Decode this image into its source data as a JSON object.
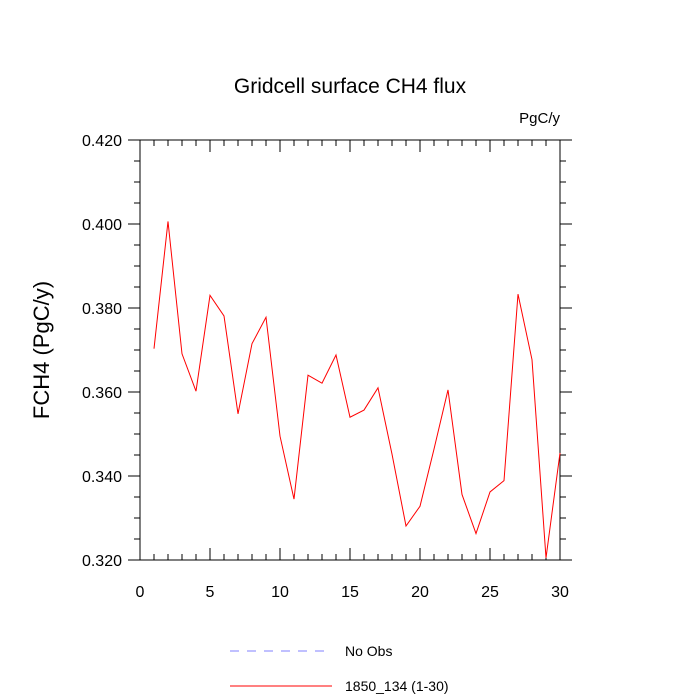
{
  "chart_data": {
    "type": "line",
    "title": "Gridcell surface CH4 flux",
    "units_label": "PgC/y",
    "xlabel": "",
    "ylabel": "FCH4  (PgC/y)",
    "xlim": [
      0,
      30
    ],
    "ylim": [
      0.32,
      0.42
    ],
    "x_ticks": [
      0,
      5,
      10,
      15,
      20,
      25,
      30
    ],
    "x_tick_labels": [
      "0",
      "5",
      "10",
      "15",
      "20",
      "25",
      "30"
    ],
    "y_ticks": [
      0.32,
      0.34,
      0.36,
      0.38,
      0.4,
      0.42
    ],
    "y_tick_labels": [
      "0.320",
      "0.340",
      "0.360",
      "0.380",
      "0.400",
      "0.420"
    ],
    "grid": false,
    "legend_position": "bottom",
    "series": [
      {
        "name": "No Obs",
        "color": "#8080ff",
        "dash": "dashed",
        "x": [],
        "values": []
      },
      {
        "name": "1850_134 (1-30)",
        "color": "#ff0000",
        "dash": "solid",
        "x": [
          1,
          2,
          3,
          4,
          5,
          6,
          7,
          8,
          9,
          10,
          11,
          12,
          13,
          14,
          15,
          16,
          17,
          18,
          19,
          20,
          21,
          22,
          23,
          24,
          25,
          26,
          27,
          28,
          29,
          30
        ],
        "values": [
          0.3703,
          0.4006,
          0.3691,
          0.3602,
          0.383,
          0.3781,
          0.3548,
          0.3715,
          0.3778,
          0.3495,
          0.3345,
          0.364,
          0.3621,
          0.3688,
          0.354,
          0.3557,
          0.361,
          0.3452,
          0.3281,
          0.3328,
          0.3464,
          0.3605,
          0.3356,
          0.3263,
          0.3362,
          0.3389,
          0.3833,
          0.3677,
          0.3205,
          0.3455
        ]
      }
    ]
  }
}
